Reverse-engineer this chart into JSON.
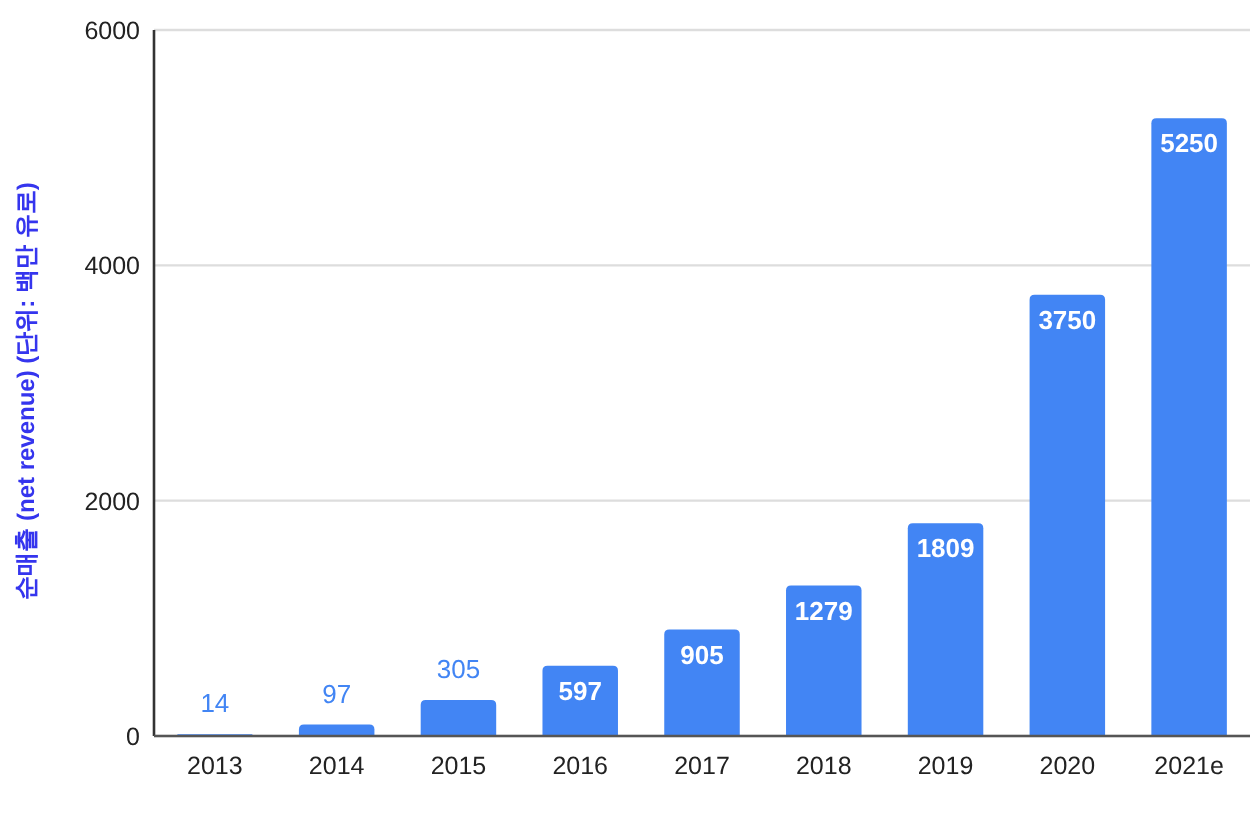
{
  "chart_data": {
    "type": "bar",
    "ylabel": "순매출 (net revenue) (단위: 백만 유로)",
    "categories": [
      "2013",
      "2014",
      "2015",
      "2016",
      "2017",
      "2018",
      "2019",
      "2020",
      "2021e"
    ],
    "values": [
      14,
      97,
      305,
      597,
      905,
      1279,
      1809,
      3750,
      5250
    ],
    "color": "#4285f4",
    "ylim": [
      0,
      6000
    ],
    "yticks": [
      0,
      2000,
      4000,
      6000
    ],
    "grid": "y",
    "data_labels": true
  }
}
